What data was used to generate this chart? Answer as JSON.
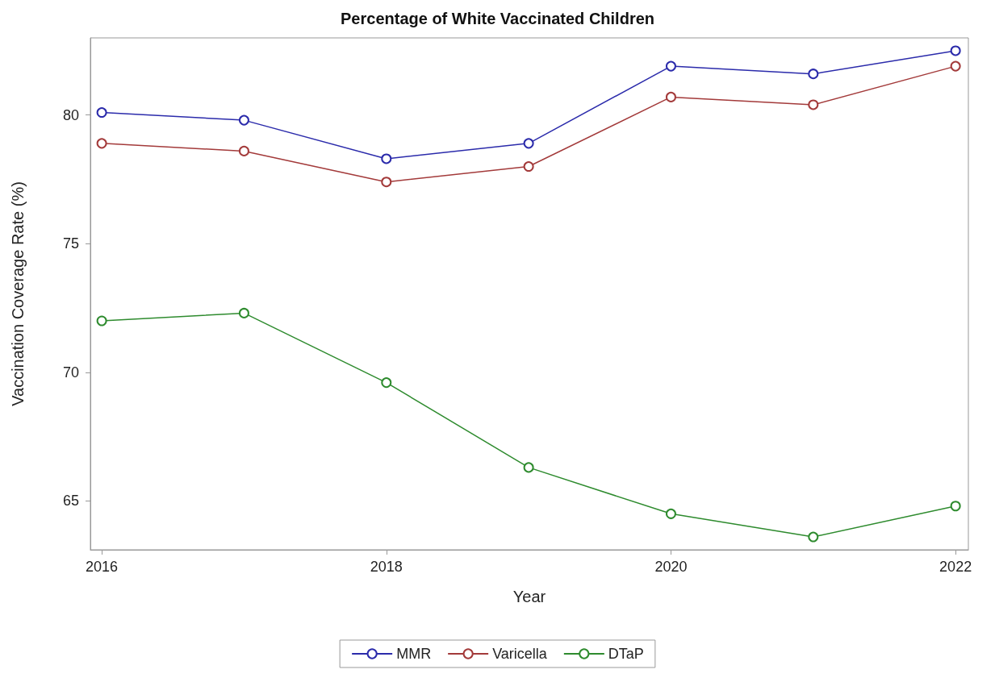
{
  "chart_data": {
    "type": "line",
    "title": "Percentage of White Vaccinated Children",
    "xlabel": "Year",
    "ylabel": "Vaccination Coverage Rate (%)",
    "x": [
      2016,
      2017,
      2018,
      2019,
      2020,
      2021,
      2022
    ],
    "series": [
      {
        "name": "MMR",
        "color": "#2b2bab",
        "values": [
          80.1,
          79.8,
          78.3,
          78.9,
          81.9,
          81.6,
          82.5
        ]
      },
      {
        "name": "Varicella",
        "color": "#a33a3a",
        "values": [
          78.9,
          78.6,
          77.4,
          78.0,
          80.7,
          80.4,
          81.9
        ]
      },
      {
        "name": "DTaP",
        "color": "#2e8b2e",
        "values": [
          72.0,
          72.3,
          69.6,
          66.3,
          64.5,
          63.6,
          64.8
        ]
      }
    ],
    "xlim": [
      2015.92,
      2022.09
    ],
    "xticks": [
      2016,
      2018,
      2020,
      2022
    ],
    "ylim": [
      63.1,
      83.0
    ],
    "yticks": [
      65,
      70,
      75,
      80
    ],
    "grid": false,
    "legend": "bottom",
    "marker": "circle",
    "line_style": "solid"
  }
}
